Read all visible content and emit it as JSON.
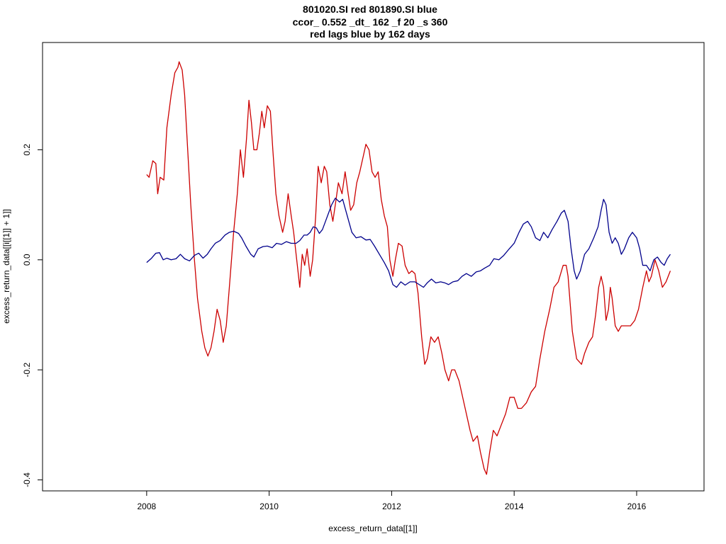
{
  "chart_data": {
    "type": "line",
    "title_lines": [
      "801020.SI red 801890.SI blue",
      "ccor_ 0.552 _dt_ 162 _f 20 _s 360",
      "red lags blue by 162 days"
    ],
    "xlabel": "excess_return_data[[1]]",
    "ylabel": "excess_return_data[[i[[1]] + 1]]",
    "xlim": [
      2006.3,
      2017.1
    ],
    "ylim": [
      -0.42,
      0.395
    ],
    "x_ticks": [
      2008,
      2010,
      2012,
      2014,
      2016
    ],
    "x_tick_labels": [
      "2008",
      "2010",
      "2012",
      "2014",
      "2016"
    ],
    "y_ticks": [
      -0.4,
      -0.2,
      0.0,
      0.2
    ],
    "y_tick_labels": [
      "-0.4",
      "-0.2",
      "0.0",
      "0.2"
    ],
    "grid": false,
    "legend": "none",
    "series": [
      {
        "color": "#cc0000",
        "points": [
          [
            2008.0,
            0.155
          ],
          [
            2008.04,
            0.15
          ],
          [
            2008.1,
            0.18
          ],
          [
            2008.15,
            0.175
          ],
          [
            2008.18,
            0.12
          ],
          [
            2008.22,
            0.15
          ],
          [
            2008.28,
            0.145
          ],
          [
            2008.33,
            0.24
          ],
          [
            2008.4,
            0.3
          ],
          [
            2008.46,
            0.34
          ],
          [
            2008.51,
            0.35
          ],
          [
            2008.53,
            0.36
          ],
          [
            2008.58,
            0.345
          ],
          [
            2008.62,
            0.3
          ],
          [
            2008.67,
            0.2
          ],
          [
            2008.72,
            0.1
          ],
          [
            2008.78,
            0.0
          ],
          [
            2008.83,
            -0.07
          ],
          [
            2008.9,
            -0.13
          ],
          [
            2008.95,
            -0.16
          ],
          [
            2009.0,
            -0.175
          ],
          [
            2009.05,
            -0.16
          ],
          [
            2009.1,
            -0.13
          ],
          [
            2009.15,
            -0.09
          ],
          [
            2009.2,
            -0.11
          ],
          [
            2009.25,
            -0.15
          ],
          [
            2009.3,
            -0.12
          ],
          [
            2009.35,
            -0.05
          ],
          [
            2009.42,
            0.05
          ],
          [
            2009.48,
            0.12
          ],
          [
            2009.53,
            0.2
          ],
          [
            2009.58,
            0.15
          ],
          [
            2009.63,
            0.22
          ],
          [
            2009.67,
            0.29
          ],
          [
            2009.71,
            0.25
          ],
          [
            2009.75,
            0.2
          ],
          [
            2009.8,
            0.2
          ],
          [
            2009.84,
            0.23
          ],
          [
            2009.88,
            0.27
          ],
          [
            2009.92,
            0.24
          ],
          [
            2009.97,
            0.28
          ],
          [
            2010.02,
            0.27
          ],
          [
            2010.06,
            0.2
          ],
          [
            2010.11,
            0.12
          ],
          [
            2010.16,
            0.08
          ],
          [
            2010.22,
            0.05
          ],
          [
            2010.26,
            0.07
          ],
          [
            2010.31,
            0.12
          ],
          [
            2010.36,
            0.08
          ],
          [
            2010.4,
            0.05
          ],
          [
            2010.45,
            0.0
          ],
          [
            2010.5,
            -0.05
          ],
          [
            2010.54,
            0.01
          ],
          [
            2010.58,
            -0.01
          ],
          [
            2010.62,
            0.02
          ],
          [
            2010.67,
            -0.03
          ],
          [
            2010.71,
            0.0
          ],
          [
            2010.76,
            0.08
          ],
          [
            2010.8,
            0.17
          ],
          [
            2010.85,
            0.14
          ],
          [
            2010.9,
            0.17
          ],
          [
            2010.94,
            0.16
          ],
          [
            2010.99,
            0.1
          ],
          [
            2011.04,
            0.07
          ],
          [
            2011.08,
            0.1
          ],
          [
            2011.13,
            0.14
          ],
          [
            2011.19,
            0.12
          ],
          [
            2011.24,
            0.16
          ],
          [
            2011.29,
            0.12
          ],
          [
            2011.33,
            0.09
          ],
          [
            2011.38,
            0.1
          ],
          [
            2011.43,
            0.14
          ],
          [
            2011.48,
            0.16
          ],
          [
            2011.54,
            0.19
          ],
          [
            2011.58,
            0.21
          ],
          [
            2011.63,
            0.2
          ],
          [
            2011.68,
            0.16
          ],
          [
            2011.73,
            0.15
          ],
          [
            2011.78,
            0.16
          ],
          [
            2011.83,
            0.11
          ],
          [
            2011.88,
            0.08
          ],
          [
            2011.93,
            0.06
          ],
          [
            2011.97,
            0.0
          ],
          [
            2012.02,
            -0.03
          ],
          [
            2012.06,
            0.0
          ],
          [
            2012.11,
            0.03
          ],
          [
            2012.17,
            0.025
          ],
          [
            2012.22,
            -0.01
          ],
          [
            2012.28,
            -0.025
          ],
          [
            2012.33,
            -0.02
          ],
          [
            2012.38,
            -0.025
          ],
          [
            2012.43,
            -0.06
          ],
          [
            2012.49,
            -0.14
          ],
          [
            2012.54,
            -0.19
          ],
          [
            2012.58,
            -0.18
          ],
          [
            2012.64,
            -0.14
          ],
          [
            2012.7,
            -0.15
          ],
          [
            2012.76,
            -0.14
          ],
          [
            2012.82,
            -0.17
          ],
          [
            2012.87,
            -0.2
          ],
          [
            2012.93,
            -0.22
          ],
          [
            2012.98,
            -0.2
          ],
          [
            2013.03,
            -0.2
          ],
          [
            2013.1,
            -0.22
          ],
          [
            2013.16,
            -0.25
          ],
          [
            2013.22,
            -0.28
          ],
          [
            2013.28,
            -0.31
          ],
          [
            2013.33,
            -0.33
          ],
          [
            2013.4,
            -0.32
          ],
          [
            2013.45,
            -0.35
          ],
          [
            2013.51,
            -0.38
          ],
          [
            2013.55,
            -0.39
          ],
          [
            2013.6,
            -0.35
          ],
          [
            2013.66,
            -0.31
          ],
          [
            2013.72,
            -0.32
          ],
          [
            2013.79,
            -0.3
          ],
          [
            2013.86,
            -0.28
          ],
          [
            2013.93,
            -0.25
          ],
          [
            2014.0,
            -0.25
          ],
          [
            2014.06,
            -0.27
          ],
          [
            2014.12,
            -0.27
          ],
          [
            2014.2,
            -0.26
          ],
          [
            2014.28,
            -0.24
          ],
          [
            2014.35,
            -0.23
          ],
          [
            2014.42,
            -0.18
          ],
          [
            2014.5,
            -0.13
          ],
          [
            2014.58,
            -0.09
          ],
          [
            2014.65,
            -0.05
          ],
          [
            2014.72,
            -0.04
          ],
          [
            2014.8,
            -0.01
          ],
          [
            2014.85,
            -0.01
          ],
          [
            2014.88,
            -0.03
          ],
          [
            2014.95,
            -0.13
          ],
          [
            2015.02,
            -0.18
          ],
          [
            2015.1,
            -0.19
          ],
          [
            2015.15,
            -0.17
          ],
          [
            2015.22,
            -0.15
          ],
          [
            2015.28,
            -0.14
          ],
          [
            2015.33,
            -0.1
          ],
          [
            2015.38,
            -0.05
          ],
          [
            2015.42,
            -0.03
          ],
          [
            2015.46,
            -0.05
          ],
          [
            2015.5,
            -0.11
          ],
          [
            2015.54,
            -0.09
          ],
          [
            2015.57,
            -0.05
          ],
          [
            2015.6,
            -0.07
          ],
          [
            2015.65,
            -0.12
          ],
          [
            2015.7,
            -0.13
          ],
          [
            2015.75,
            -0.12
          ],
          [
            2015.82,
            -0.12
          ],
          [
            2015.9,
            -0.12
          ],
          [
            2015.97,
            -0.11
          ],
          [
            2016.03,
            -0.09
          ],
          [
            2016.1,
            -0.05
          ],
          [
            2016.16,
            -0.02
          ],
          [
            2016.2,
            -0.04
          ],
          [
            2016.24,
            -0.03
          ],
          [
            2016.3,
            0.0
          ],
          [
            2016.36,
            -0.02
          ],
          [
            2016.42,
            -0.05
          ],
          [
            2016.48,
            -0.04
          ],
          [
            2016.55,
            -0.02
          ]
        ]
      },
      {
        "color": "#00008b",
        "points": [
          [
            2008.0,
            -0.005
          ],
          [
            2008.08,
            0.003
          ],
          [
            2008.15,
            0.012
          ],
          [
            2008.21,
            0.013
          ],
          [
            2008.27,
            0.0
          ],
          [
            2008.33,
            0.003
          ],
          [
            2008.4,
            0.0
          ],
          [
            2008.48,
            0.002
          ],
          [
            2008.55,
            0.01
          ],
          [
            2008.62,
            0.002
          ],
          [
            2008.7,
            -0.002
          ],
          [
            2008.78,
            0.008
          ],
          [
            2008.85,
            0.012
          ],
          [
            2008.92,
            0.003
          ],
          [
            2008.99,
            0.01
          ],
          [
            2009.05,
            0.02
          ],
          [
            2009.12,
            0.03
          ],
          [
            2009.2,
            0.035
          ],
          [
            2009.28,
            0.045
          ],
          [
            2009.35,
            0.05
          ],
          [
            2009.42,
            0.052
          ],
          [
            2009.5,
            0.048
          ],
          [
            2009.55,
            0.04
          ],
          [
            2009.62,
            0.025
          ],
          [
            2009.7,
            0.01
          ],
          [
            2009.75,
            0.005
          ],
          [
            2009.82,
            0.02
          ],
          [
            2009.9,
            0.024
          ],
          [
            2009.97,
            0.025
          ],
          [
            2010.05,
            0.022
          ],
          [
            2010.12,
            0.03
          ],
          [
            2010.2,
            0.028
          ],
          [
            2010.28,
            0.033
          ],
          [
            2010.36,
            0.03
          ],
          [
            2010.44,
            0.03
          ],
          [
            2010.5,
            0.035
          ],
          [
            2010.57,
            0.045
          ],
          [
            2010.62,
            0.045
          ],
          [
            2010.67,
            0.05
          ],
          [
            2010.72,
            0.06
          ],
          [
            2010.77,
            0.058
          ],
          [
            2010.82,
            0.048
          ],
          [
            2010.87,
            0.055
          ],
          [
            2010.92,
            0.07
          ],
          [
            2010.97,
            0.085
          ],
          [
            2011.02,
            0.1
          ],
          [
            2011.08,
            0.112
          ],
          [
            2011.15,
            0.105
          ],
          [
            2011.2,
            0.11
          ],
          [
            2011.25,
            0.09
          ],
          [
            2011.3,
            0.07
          ],
          [
            2011.35,
            0.05
          ],
          [
            2011.42,
            0.04
          ],
          [
            2011.5,
            0.042
          ],
          [
            2011.58,
            0.036
          ],
          [
            2011.65,
            0.037
          ],
          [
            2011.72,
            0.025
          ],
          [
            2011.8,
            0.01
          ],
          [
            2011.88,
            -0.005
          ],
          [
            2011.95,
            -0.02
          ],
          [
            2012.02,
            -0.045
          ],
          [
            2012.08,
            -0.05
          ],
          [
            2012.15,
            -0.04
          ],
          [
            2012.22,
            -0.046
          ],
          [
            2012.3,
            -0.04
          ],
          [
            2012.38,
            -0.04
          ],
          [
            2012.45,
            -0.045
          ],
          [
            2012.52,
            -0.05
          ],
          [
            2012.58,
            -0.042
          ],
          [
            2012.65,
            -0.035
          ],
          [
            2012.72,
            -0.042
          ],
          [
            2012.8,
            -0.04
          ],
          [
            2012.87,
            -0.042
          ],
          [
            2012.93,
            -0.045
          ],
          [
            2013.0,
            -0.04
          ],
          [
            2013.08,
            -0.038
          ],
          [
            2013.15,
            -0.03
          ],
          [
            2013.22,
            -0.025
          ],
          [
            2013.3,
            -0.03
          ],
          [
            2013.38,
            -0.022
          ],
          [
            2013.45,
            -0.02
          ],
          [
            2013.52,
            -0.015
          ],
          [
            2013.6,
            -0.01
          ],
          [
            2013.67,
            0.002
          ],
          [
            2013.75,
            0.0
          ],
          [
            2013.83,
            0.008
          ],
          [
            2013.92,
            0.02
          ],
          [
            2014.0,
            0.03
          ],
          [
            2014.08,
            0.05
          ],
          [
            2014.15,
            0.065
          ],
          [
            2014.22,
            0.07
          ],
          [
            2014.28,
            0.06
          ],
          [
            2014.35,
            0.04
          ],
          [
            2014.42,
            0.035
          ],
          [
            2014.48,
            0.05
          ],
          [
            2014.55,
            0.04
          ],
          [
            2014.62,
            0.055
          ],
          [
            2014.7,
            0.07
          ],
          [
            2014.77,
            0.085
          ],
          [
            2014.82,
            0.09
          ],
          [
            2014.88,
            0.07
          ],
          [
            2014.93,
            0.02
          ],
          [
            2014.98,
            -0.02
          ],
          [
            2015.02,
            -0.035
          ],
          [
            2015.08,
            -0.02
          ],
          [
            2015.15,
            0.01
          ],
          [
            2015.22,
            0.02
          ],
          [
            2015.3,
            0.04
          ],
          [
            2015.37,
            0.06
          ],
          [
            2015.42,
            0.09
          ],
          [
            2015.46,
            0.11
          ],
          [
            2015.5,
            0.1
          ],
          [
            2015.55,
            0.05
          ],
          [
            2015.6,
            0.03
          ],
          [
            2015.65,
            0.04
          ],
          [
            2015.7,
            0.03
          ],
          [
            2015.75,
            0.01
          ],
          [
            2015.8,
            0.02
          ],
          [
            2015.87,
            0.04
          ],
          [
            2015.93,
            0.05
          ],
          [
            2016.0,
            0.04
          ],
          [
            2016.05,
            0.02
          ],
          [
            2016.1,
            -0.01
          ],
          [
            2016.16,
            -0.01
          ],
          [
            2016.22,
            -0.02
          ],
          [
            2016.28,
            0.0
          ],
          [
            2016.34,
            0.005
          ],
          [
            2016.4,
            -0.005
          ],
          [
            2016.45,
            -0.01
          ],
          [
            2016.5,
            0.002
          ],
          [
            2016.55,
            0.01
          ]
        ]
      }
    ]
  }
}
